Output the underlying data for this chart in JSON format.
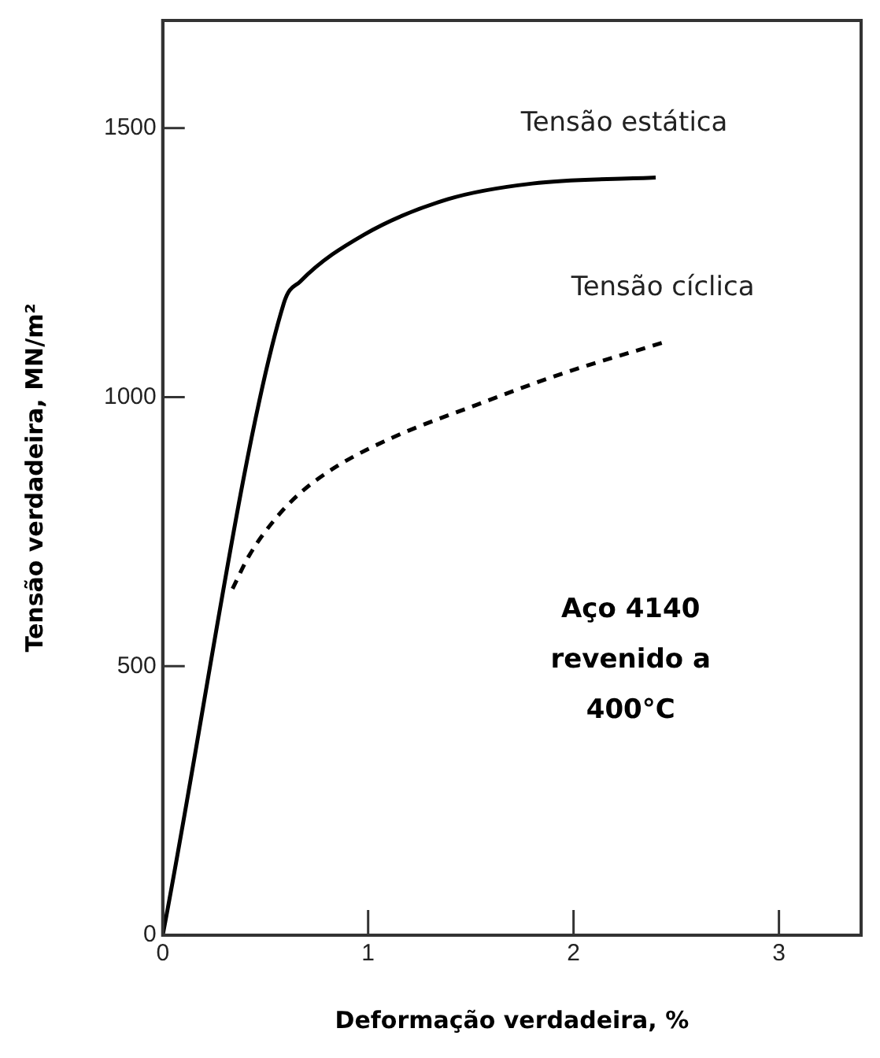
{
  "chart_data": {
    "type": "line",
    "xlabel": "Deformação verdadeira, %",
    "ylabel": "Tensão verdadeira, MN/m²",
    "xlim": [
      0,
      3.4
    ],
    "xticks": [
      0,
      1,
      2,
      3
    ],
    "ylim": [
      0,
      1700
    ],
    "yticks": [
      0,
      500,
      1000,
      1500
    ],
    "grid": false,
    "legend": false,
    "marker": "none",
    "series": [
      {
        "name": "Tensão estática",
        "color": "#000000",
        "line_style": "solid",
        "x": [
          0,
          0.59,
          0.67,
          0.98,
          1.39,
          1.8,
          2.4
        ],
        "values": [
          0,
          1175,
          1215,
          1302,
          1368,
          1397,
          1408
        ]
      },
      {
        "name": "Tensão cíclica",
        "color": "#000000",
        "line_style": "dashed",
        "x": [
          0.34,
          0.42,
          0.54,
          0.67,
          0.85,
          1.12,
          1.53,
          1.94,
          2.45
        ],
        "values": [
          644,
          705,
          770,
          822,
          872,
          925,
          986,
          1043,
          1103
        ]
      }
    ],
    "annotations": [
      "Aço 4140\nrevenido a\n400°C"
    ]
  }
}
